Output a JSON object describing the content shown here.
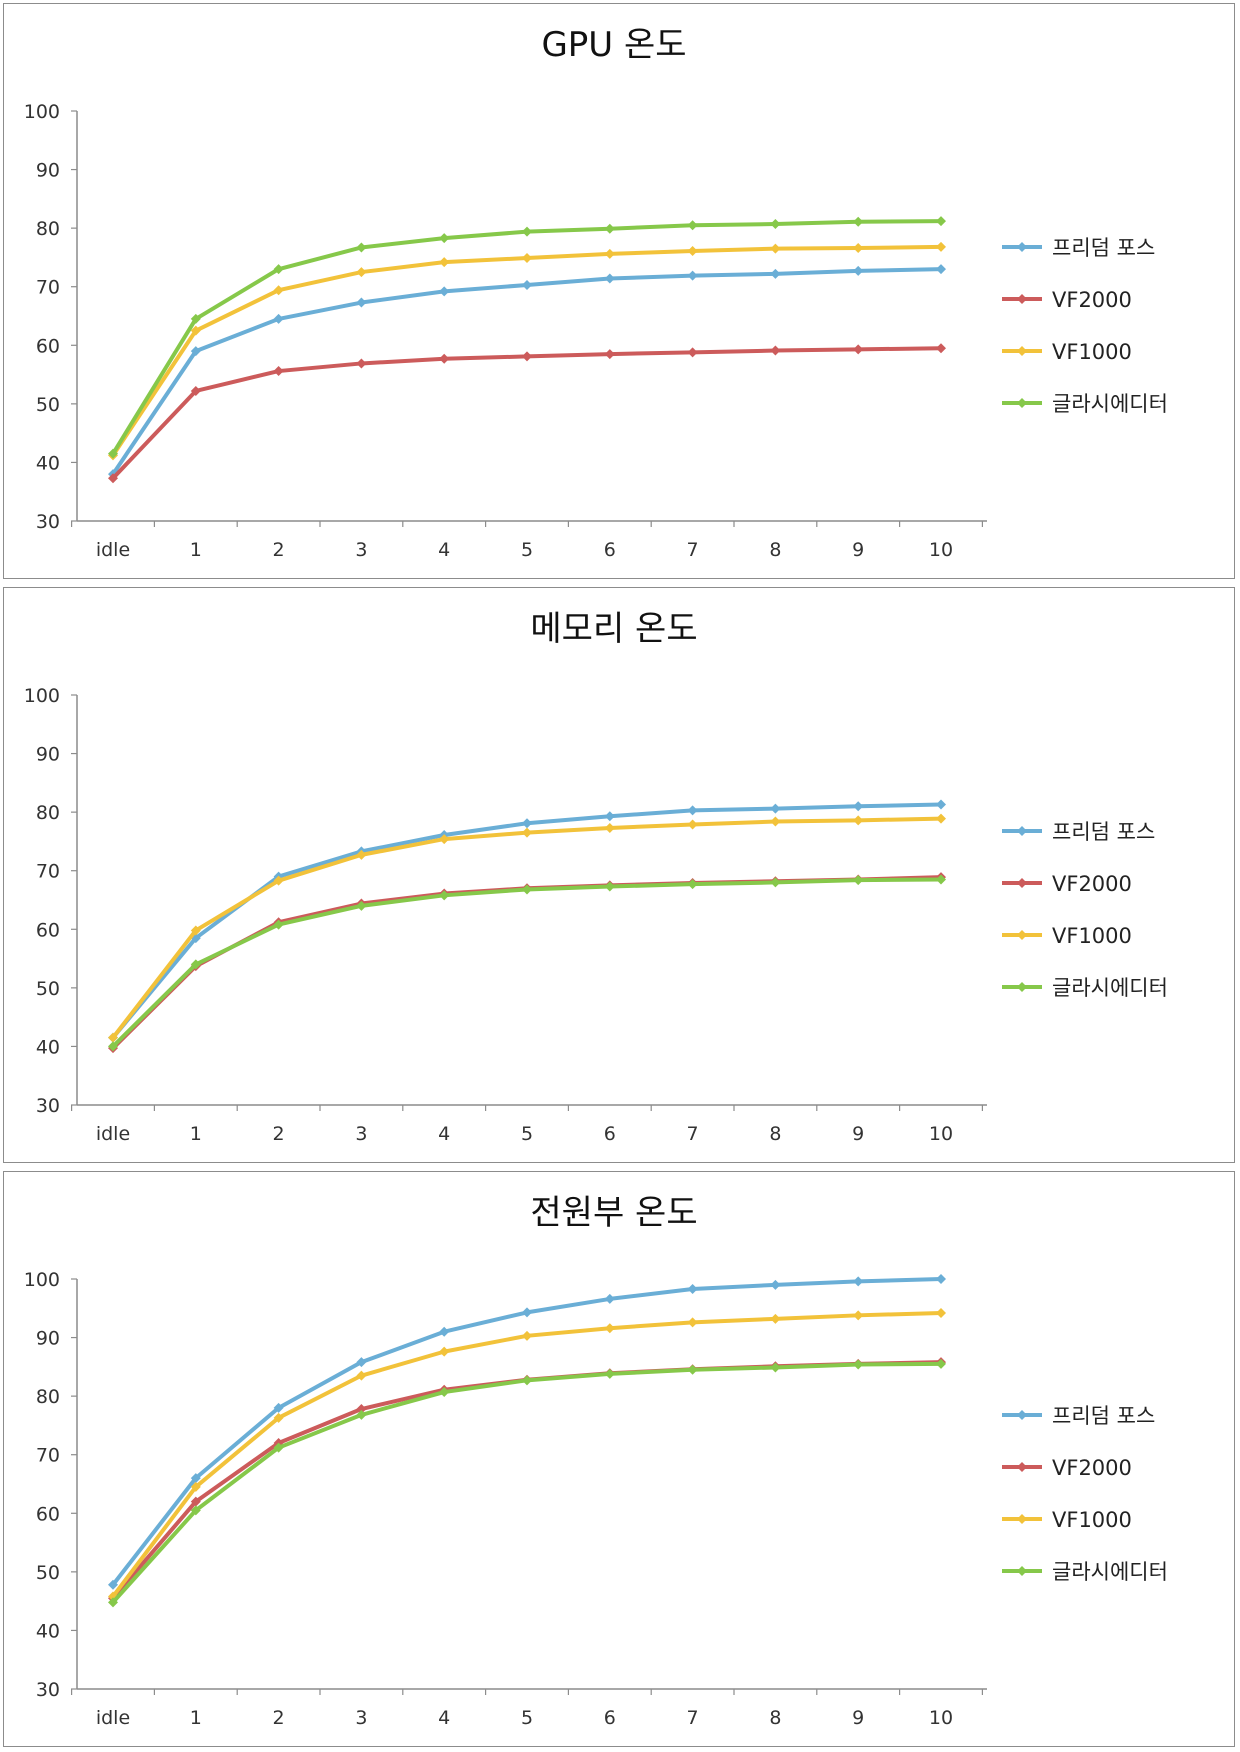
{
  "charts": [
    {
      "type": "line",
      "title": "GPU 온도",
      "categories": [
        "idle",
        "1",
        "2",
        "3",
        "4",
        "5",
        "6",
        "7",
        "8",
        "9",
        "10"
      ],
      "ylim": [
        30,
        100
      ],
      "yticks": [
        "30",
        "40",
        "50",
        "60",
        "70",
        "80",
        "90",
        "100"
      ],
      "legend_position": "right",
      "grid": false,
      "series": [
        {
          "name": "프리덤 포스",
          "color": "#6aaed6",
          "values": [
            38,
            59,
            64.5,
            67.3,
            69.2,
            70.3,
            71.4,
            71.9,
            72.2,
            72.7,
            73
          ]
        },
        {
          "name": "VF2000",
          "color": "#cc5b5b",
          "values": [
            37.3,
            52.2,
            55.6,
            56.9,
            57.7,
            58.1,
            58.5,
            58.8,
            59.1,
            59.3,
            59.5
          ]
        },
        {
          "name": "VF1000",
          "color": "#f2c23a",
          "values": [
            41.2,
            62.5,
            69.4,
            72.5,
            74.2,
            74.9,
            75.6,
            76.1,
            76.5,
            76.6,
            76.8
          ]
        },
        {
          "name": "글라시에디터",
          "color": "#86c84a",
          "values": [
            41.5,
            64.5,
            73,
            76.7,
            78.3,
            79.4,
            79.9,
            80.5,
            80.7,
            81.1,
            81.2
          ]
        }
      ]
    },
    {
      "type": "line",
      "title": "메모리 온도",
      "categories": [
        "idle",
        "1",
        "2",
        "3",
        "4",
        "5",
        "6",
        "7",
        "8",
        "9",
        "10"
      ],
      "ylim": [
        30,
        100
      ],
      "yticks": [
        "30",
        "40",
        "50",
        "60",
        "70",
        "80",
        "90",
        "100"
      ],
      "legend_position": "right",
      "grid": false,
      "series": [
        {
          "name": "프리덤 포스",
          "color": "#6aaed6",
          "values": [
            41.5,
            58.5,
            69,
            73.3,
            76.1,
            78.1,
            79.3,
            80.3,
            80.6,
            81,
            81.3
          ]
        },
        {
          "name": "VF2000",
          "color": "#cc5b5b",
          "values": [
            39.7,
            53.7,
            61.2,
            64.4,
            66.1,
            67,
            67.5,
            67.9,
            68.2,
            68.5,
            68.9
          ]
        },
        {
          "name": "VF1000",
          "color": "#f2c23a",
          "values": [
            41.5,
            59.8,
            68.3,
            72.7,
            75.4,
            76.5,
            77.3,
            77.9,
            78.4,
            78.6,
            78.9
          ]
        },
        {
          "name": "글라시에디터",
          "color": "#86c84a",
          "values": [
            40,
            54,
            60.8,
            64,
            65.8,
            66.8,
            67.3,
            67.7,
            68,
            68.4,
            68.5
          ]
        }
      ]
    },
    {
      "type": "line",
      "title": "전원부 온도",
      "categories": [
        "idle",
        "1",
        "2",
        "3",
        "4",
        "5",
        "6",
        "7",
        "8",
        "9",
        "10"
      ],
      "ylim": [
        30,
        100
      ],
      "yticks": [
        "30",
        "40",
        "50",
        "60",
        "70",
        "80",
        "90",
        "100"
      ],
      "legend_position": "right",
      "grid": false,
      "series": [
        {
          "name": "프리덤 포스",
          "color": "#6aaed6",
          "values": [
            47.8,
            66,
            78,
            85.8,
            91,
            94.3,
            96.6,
            98.3,
            99,
            99.6,
            100
          ]
        },
        {
          "name": "VF2000",
          "color": "#cc5b5b",
          "values": [
            45.5,
            62,
            72,
            77.8,
            81.1,
            82.8,
            83.9,
            84.6,
            85.1,
            85.5,
            85.8
          ]
        },
        {
          "name": "VF1000",
          "color": "#f2c23a",
          "values": [
            45.8,
            64.5,
            76.3,
            83.5,
            87.6,
            90.3,
            91.6,
            92.6,
            93.2,
            93.8,
            94.2
          ]
        },
        {
          "name": "글라시에디터",
          "color": "#86c84a",
          "values": [
            44.8,
            60.5,
            71.2,
            76.8,
            80.7,
            82.7,
            83.8,
            84.5,
            84.9,
            85.4,
            85.5
          ]
        }
      ]
    }
  ]
}
